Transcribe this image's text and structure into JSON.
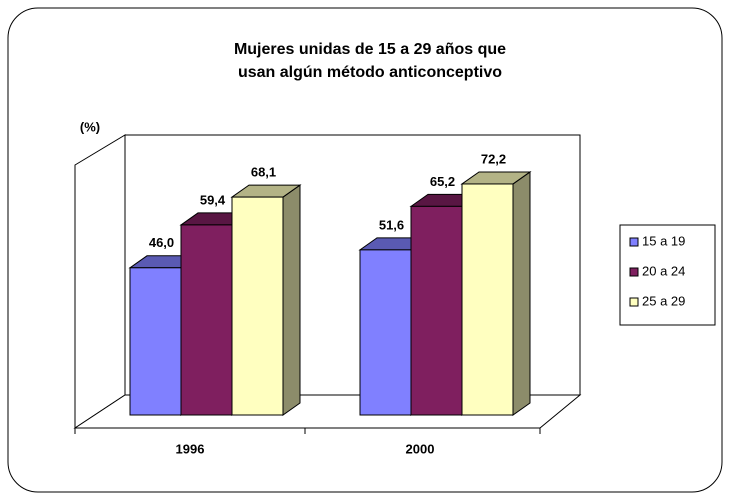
{
  "chart_data": {
    "type": "bar3d",
    "title": "Mujeres unidas de 15 a 29 años que usan algún método anticonceptivo",
    "title_lines": [
      "Mujeres unidas de 15 a 29 años que",
      "usan algún método anticonceptivo"
    ],
    "ylabel": "(%)",
    "categories": [
      "1996",
      "2000"
    ],
    "series": [
      {
        "name": "15 a 19",
        "color": "#8080ff",
        "values": [
          46.0,
          51.6
        ],
        "value_labels": [
          "46,0",
          "51,6"
        ]
      },
      {
        "name": "20 a 24",
        "color": "#7f1f5f",
        "values": [
          59.4,
          65.2
        ],
        "value_labels": [
          "59,4",
          "65,2"
        ]
      },
      {
        "name": "25 a 29",
        "color": "#ffffc0",
        "values": [
          68.1,
          72.2
        ],
        "value_labels": [
          "68,1",
          "72,2"
        ]
      }
    ],
    "ylim": [
      0,
      80
    ],
    "legend": "right"
  }
}
